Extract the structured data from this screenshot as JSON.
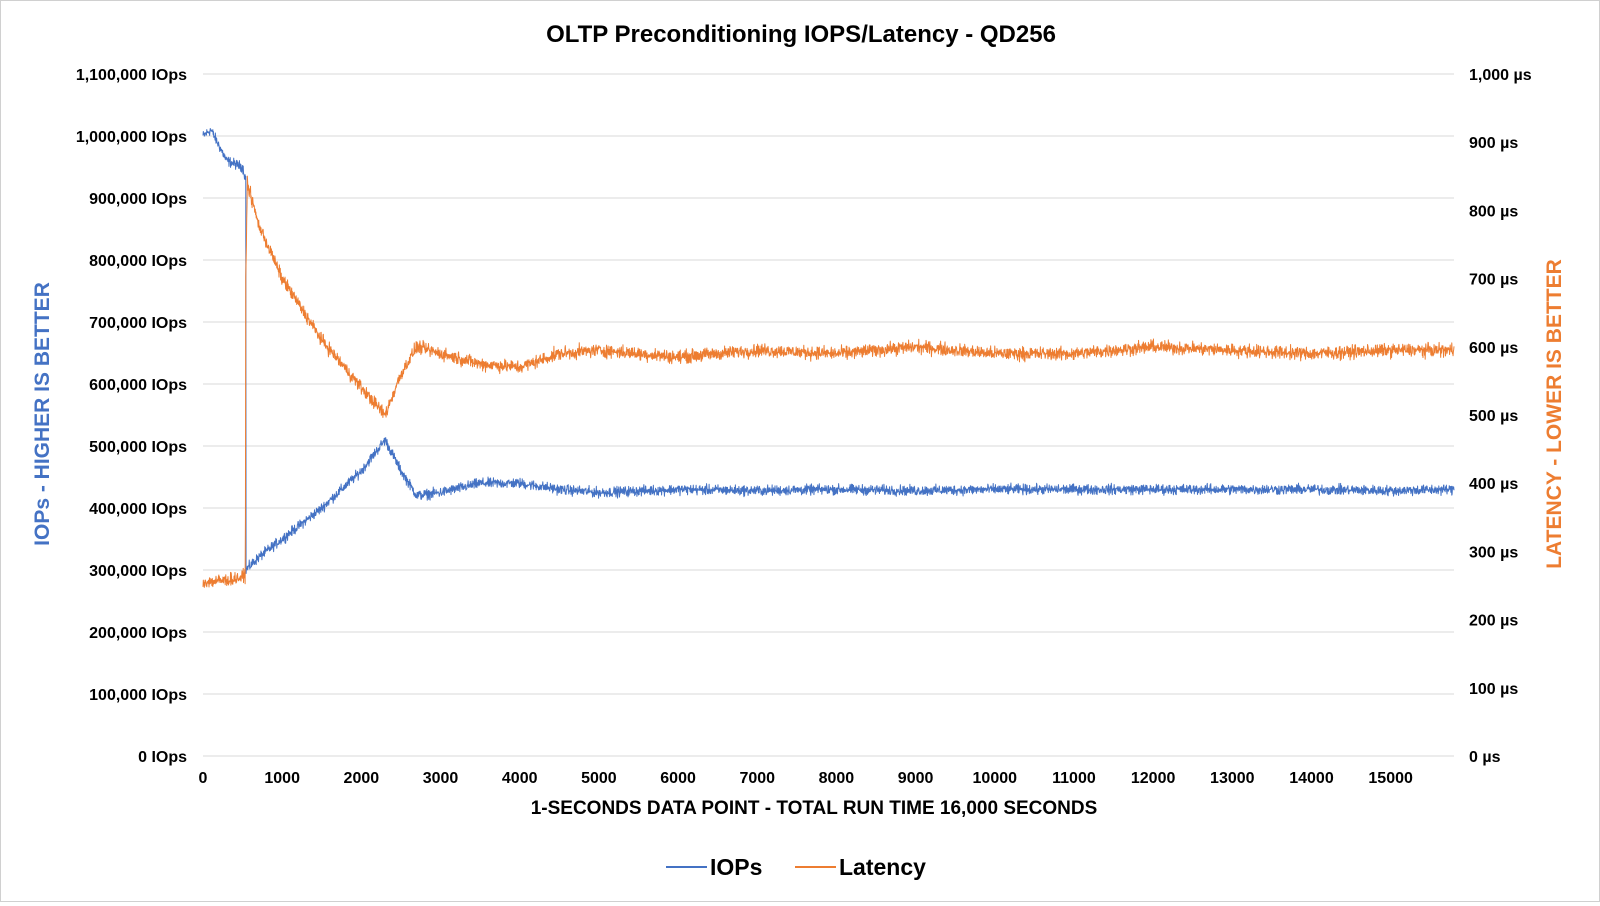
{
  "chart_data": {
    "type": "line",
    "title": "OLTP Preconditioning IOPS/Latency  - QD256",
    "xlabel": "1-SECONDS DATA POINT - TOTAL RUN TIME 16,000 SECONDS",
    "ylabel_left": "IOPs - HIGHER IS BETTER",
    "ylabel_right": "LATENCY - LOWER IS BETTER",
    "x_range": [
      0,
      15800
    ],
    "x_ticks": [
      "0",
      "1000",
      "2000",
      "3000",
      "4000",
      "5000",
      "6000",
      "7000",
      "8000",
      "9000",
      "10000",
      "11000",
      "12000",
      "13000",
      "14000",
      "15000"
    ],
    "y_left": {
      "range": [
        0,
        1100000
      ],
      "tick_labels": [
        "0 IOps",
        "100,000 IOps",
        "200,000 IOps",
        "300,000 IOps",
        "400,000 IOps",
        "500,000 IOps",
        "600,000 IOps",
        "700,000 IOps",
        "800,000 IOps",
        "900,000 IOps",
        "1,000,000 IOps",
        "1,100,000 IOps"
      ]
    },
    "y_right": {
      "range": [
        0,
        1000
      ],
      "tick_labels": [
        "0 µs",
        "100 µs",
        "200 µs",
        "300 µs",
        "400 µs",
        "500 µs",
        "600 µs",
        "700 µs",
        "800 µs",
        "900 µs",
        "1,000 µs"
      ]
    },
    "legend_position": "bottom",
    "series": [
      {
        "name": "IOPs",
        "axis": "left",
        "color": "#4472c4",
        "x": [
          0,
          100,
          300,
          500,
          540,
          541,
          700,
          1000,
          1500,
          2000,
          2300,
          2500,
          2700,
          3000,
          3500,
          4000,
          4500,
          5000,
          6000,
          7000,
          8000,
          9000,
          10000,
          11000,
          12000,
          13000,
          14000,
          15000,
          15800
        ],
        "values": [
          1000000,
          1010000,
          960000,
          950000,
          930000,
          300000,
          320000,
          350000,
          400000,
          460000,
          510000,
          460000,
          420000,
          425000,
          440000,
          440000,
          430000,
          425000,
          430000,
          428000,
          430000,
          428000,
          430000,
          430000,
          430000,
          430000,
          430000,
          428000,
          430000
        ],
        "noise": 12000
      },
      {
        "name": "Latency",
        "axis": "right",
        "color": "#ed7d31",
        "x": [
          0,
          300,
          500,
          535,
          540,
          560,
          700,
          1000,
          1500,
          2000,
          2300,
          2500,
          2700,
          3000,
          3500,
          4000,
          4500,
          5000,
          6000,
          7000,
          8000,
          9000,
          10000,
          11000,
          12000,
          13000,
          14000,
          15000,
          15800
        ],
        "values": [
          255,
          258,
          262,
          265,
          700,
          840,
          780,
          700,
          610,
          540,
          500,
          560,
          600,
          590,
          575,
          570,
          590,
          595,
          585,
          595,
          590,
          600,
          590,
          590,
          600,
          595,
          590,
          595,
          595
        ],
        "noise": 14
      }
    ]
  }
}
